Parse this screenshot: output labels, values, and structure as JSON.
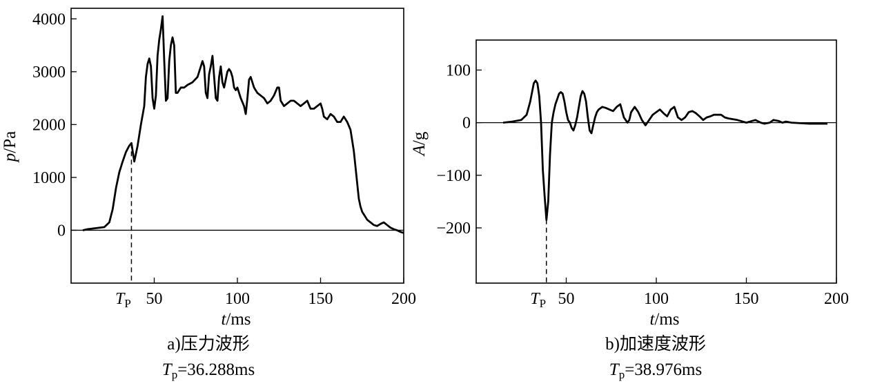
{
  "chart_data": [
    {
      "type": "line",
      "caption": "a)压力波形",
      "tp_label_line": "=36.288ms",
      "tp_symbol": "T",
      "tp_sub_axis": "P",
      "tp_sub_caption": "p",
      "tp_value_ms": 36.288,
      "xlabel_var": "t",
      "xlabel_unit": "/ms",
      "ylabel_var": "p",
      "ylabel_unit": "/Pa",
      "xlim": [
        0,
        200
      ],
      "ylim": [
        -1000,
        4200
      ],
      "xticks": [
        50,
        100,
        150,
        200
      ],
      "xtick_labels": [
        "50",
        "100",
        "150",
        "200"
      ],
      "yticks": [
        0,
        1000,
        2000,
        3000,
        4000
      ],
      "ytick_labels": [
        "0",
        "1000",
        "2000",
        "3000",
        "4000"
      ],
      "zero_line": true,
      "series": [
        {
          "x": [
            7,
            10,
            15,
            20,
            23,
            25,
            27,
            29,
            31,
            33,
            35,
            36.3,
            37,
            38,
            40,
            42,
            44,
            45,
            46,
            47,
            48,
            49,
            50,
            51,
            52,
            53,
            54,
            55,
            56,
            57,
            58,
            59,
            60,
            61,
            62,
            63,
            64,
            65,
            66,
            67,
            68,
            70,
            73,
            76,
            79,
            80,
            81,
            82,
            83,
            84,
            85,
            86,
            87,
            88,
            89,
            90,
            91,
            92,
            93,
            94,
            95,
            96,
            97,
            98,
            99,
            100,
            102,
            104,
            105,
            106,
            107,
            108,
            109,
            110,
            111,
            112,
            114,
            116,
            118,
            120,
            122,
            124,
            125,
            126,
            128,
            130,
            132,
            134,
            136,
            138,
            140,
            142,
            144,
            146,
            148,
            150,
            151,
            152,
            154,
            156,
            158,
            160,
            162,
            163,
            164,
            166,
            168,
            170,
            171,
            172,
            173,
            174,
            175,
            176,
            177,
            178,
            180,
            182,
            184,
            186,
            188,
            190,
            192,
            194,
            196,
            198,
            200
          ],
          "y": [
            0,
            20,
            40,
            60,
            150,
            400,
            800,
            1100,
            1300,
            1480,
            1600,
            1650,
            1500,
            1300,
            1600,
            2000,
            2350,
            2900,
            3150,
            3250,
            3100,
            2500,
            2300,
            2550,
            3300,
            3600,
            3800,
            4050,
            3200,
            2450,
            2500,
            3200,
            3500,
            3650,
            3500,
            2600,
            2600,
            2650,
            2700,
            2700,
            2700,
            2750,
            2800,
            2900,
            3200,
            3100,
            2600,
            2500,
            2950,
            3100,
            3300,
            2900,
            2500,
            2450,
            2900,
            3100,
            2800,
            2700,
            2850,
            3000,
            3050,
            3000,
            2900,
            2700,
            2650,
            2700,
            2500,
            2350,
            2200,
            2500,
            2850,
            2900,
            2800,
            2700,
            2650,
            2600,
            2550,
            2500,
            2400,
            2450,
            2550,
            2700,
            2700,
            2450,
            2350,
            2400,
            2450,
            2450,
            2400,
            2350,
            2400,
            2450,
            2300,
            2300,
            2350,
            2400,
            2300,
            2150,
            2100,
            2200,
            2150,
            2050,
            2050,
            2100,
            2150,
            2050,
            1900,
            1500,
            1200,
            900,
            600,
            450,
            350,
            300,
            250,
            200,
            150,
            100,
            80,
            120,
            150,
            100,
            50,
            20,
            0,
            -30,
            -50
          ]
        }
      ]
    },
    {
      "type": "line",
      "caption": "b)加速度波形",
      "tp_label_line": "=38.976ms",
      "tp_symbol": "T",
      "tp_sub_axis": "P",
      "tp_sub_caption": "p",
      "tp_value_ms": 38.976,
      "xlabel_var": "t",
      "xlabel_unit": "/ms",
      "ylabel_var": "A",
      "ylabel_unit": "/g",
      "xlim": [
        0,
        200
      ],
      "ylim": [
        -305,
        157
      ],
      "xticks": [
        50,
        100,
        150,
        200
      ],
      "xtick_labels": [
        "50",
        "100",
        "150",
        "200"
      ],
      "yticks": [
        -200,
        -100,
        0,
        100
      ],
      "ytick_labels": [
        "−200",
        "−100",
        "0",
        "100"
      ],
      "zero_line": true,
      "series": [
        {
          "x": [
            15,
            20,
            25,
            28,
            30,
            32,
            33,
            34,
            35,
            36,
            37,
            38,
            39,
            40,
            41,
            42,
            43,
            44,
            45,
            46,
            47,
            48,
            49,
            50,
            51,
            52,
            53,
            54,
            55,
            56,
            57,
            58,
            59,
            60,
            61,
            62,
            63,
            64,
            65,
            66,
            67,
            68,
            70,
            72,
            74,
            76,
            78,
            80,
            82,
            84,
            85,
            86,
            88,
            90,
            92,
            94,
            96,
            98,
            100,
            102,
            104,
            106,
            108,
            110,
            112,
            114,
            116,
            118,
            120,
            122,
            124,
            126,
            128,
            130,
            132,
            134,
            136,
            138,
            140,
            145,
            150,
            152,
            155,
            158,
            160,
            163,
            165,
            168,
            170,
            172,
            175,
            180,
            185,
            190,
            195
          ],
          "y": [
            0,
            2,
            5,
            15,
            40,
            75,
            80,
            75,
            50,
            0,
            -90,
            -140,
            -185,
            -150,
            -60,
            0,
            20,
            35,
            45,
            55,
            58,
            55,
            40,
            20,
            5,
            0,
            -10,
            -15,
            -5,
            10,
            30,
            50,
            60,
            55,
            40,
            10,
            -15,
            -20,
            -5,
            10,
            20,
            25,
            30,
            28,
            25,
            22,
            30,
            35,
            10,
            0,
            5,
            20,
            30,
            20,
            5,
            -5,
            5,
            15,
            20,
            25,
            18,
            12,
            25,
            30,
            10,
            5,
            10,
            20,
            22,
            18,
            12,
            5,
            10,
            12,
            15,
            15,
            15,
            10,
            8,
            5,
            0,
            2,
            5,
            0,
            -2,
            0,
            5,
            3,
            0,
            2,
            0,
            -1,
            -2,
            -2,
            -2
          ]
        }
      ]
    }
  ]
}
